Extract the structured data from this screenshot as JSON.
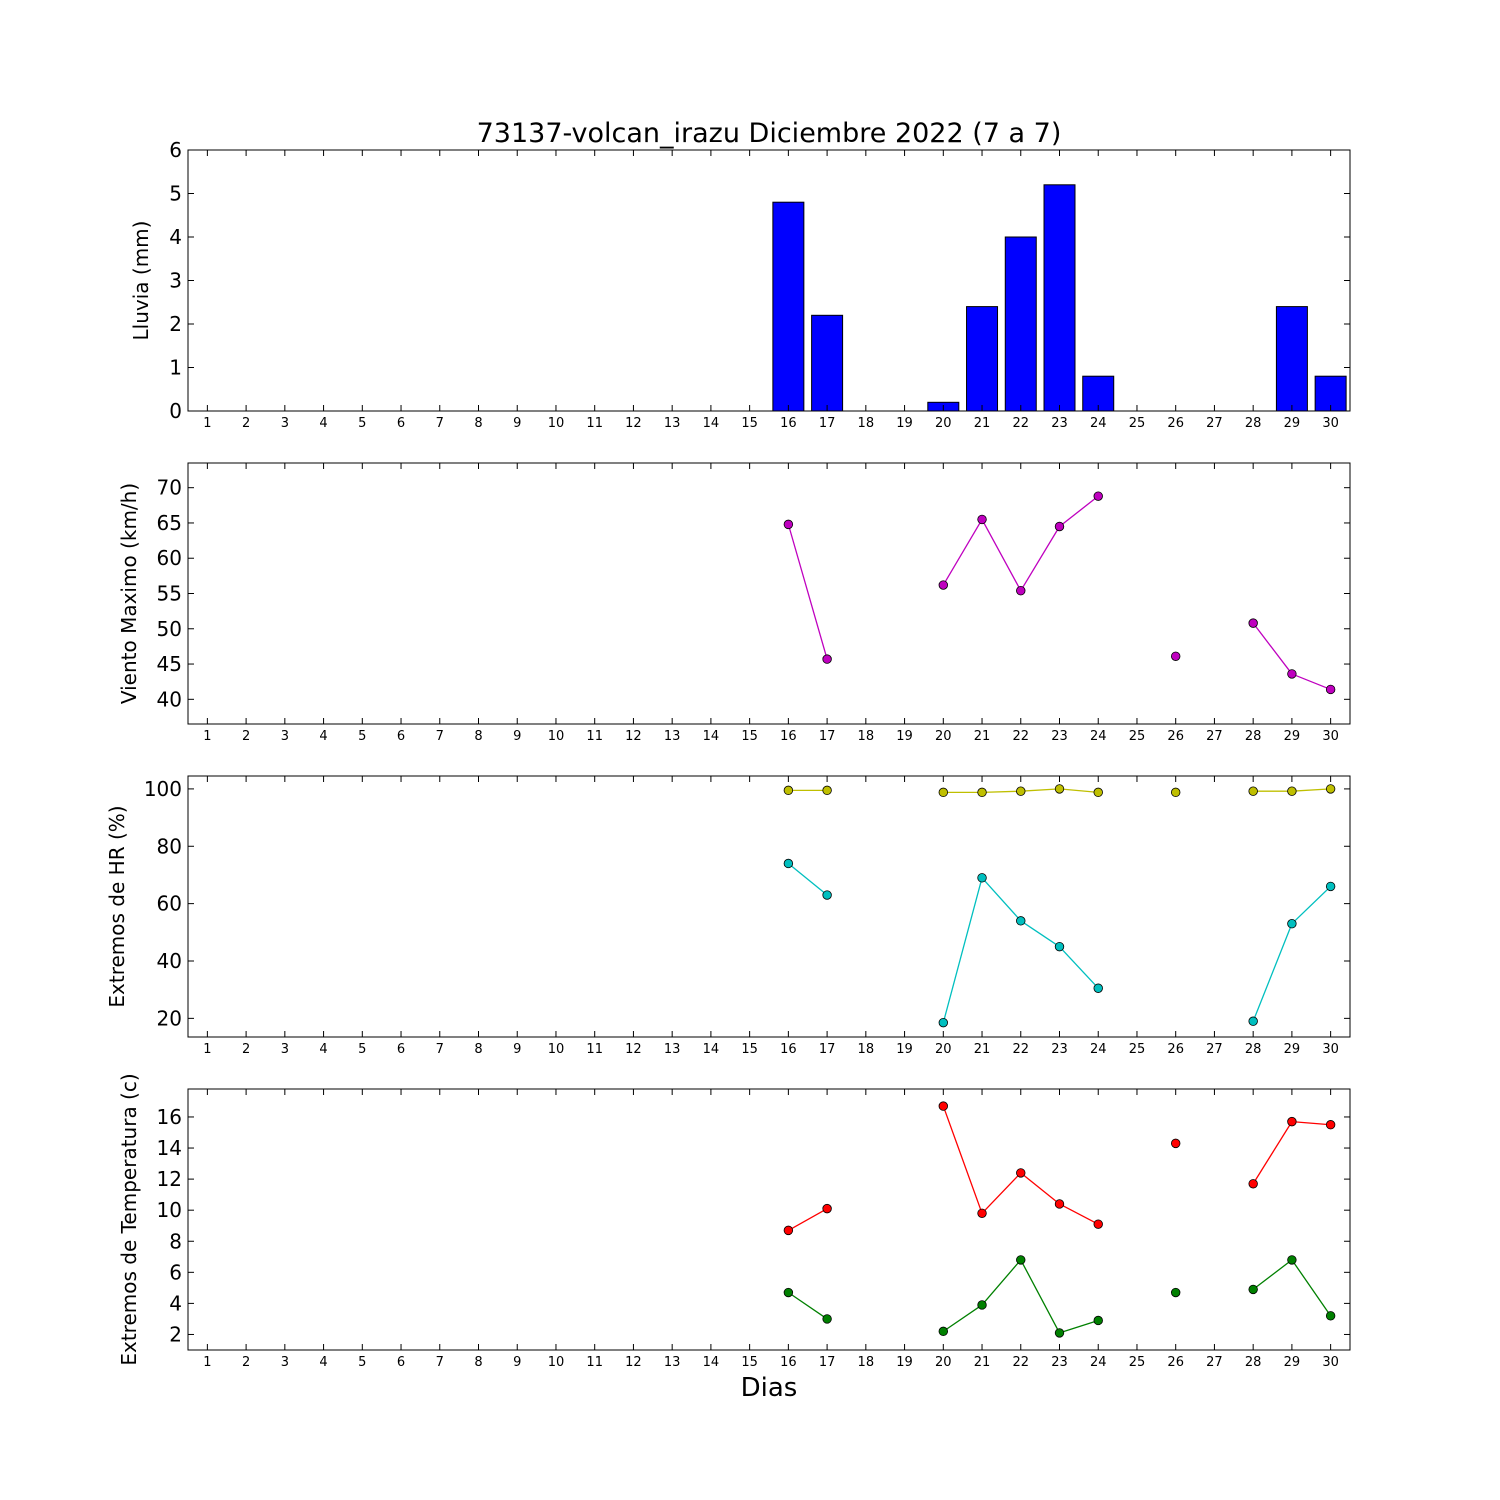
{
  "chart_data": {
    "title": "73137-volcan_irazu Diciembre 2022  (7 a 7)",
    "xlabel": "Dias",
    "x_ticks": [
      "1",
      "2",
      "3",
      "4",
      "5",
      "6",
      "7",
      "8",
      "9",
      "10",
      "11",
      "12",
      "13",
      "14",
      "15",
      "16",
      "17",
      "18",
      "19",
      "20",
      "21",
      "22",
      "23",
      "24",
      "25",
      "26",
      "27",
      "28",
      "29",
      "30"
    ],
    "panels": [
      {
        "type": "bar",
        "ylabel": "Lluvia (mm)",
        "ylim": [
          0,
          6
        ],
        "yticks": [
          0,
          1,
          2,
          3,
          4,
          5,
          6
        ],
        "categories": [
          "1",
          "2",
          "3",
          "4",
          "5",
          "6",
          "7",
          "8",
          "9",
          "10",
          "11",
          "12",
          "13",
          "14",
          "15",
          "16",
          "17",
          "18",
          "19",
          "20",
          "21",
          "22",
          "23",
          "24",
          "25",
          "26",
          "27",
          "28",
          "29",
          "30"
        ],
        "values": [
          0,
          0,
          0,
          0,
          0,
          0,
          0,
          0,
          0,
          0,
          0,
          0,
          0,
          0,
          0,
          4.8,
          2.2,
          0,
          0,
          0.2,
          2.4,
          4.0,
          5.2,
          0.8,
          0,
          0,
          0,
          0,
          2.4,
          0.8
        ],
        "color": "#0000ff"
      },
      {
        "type": "line",
        "ylabel": "Viento Maximo (km/h)",
        "ylim": [
          36.5,
          73.5
        ],
        "yticks": [
          40,
          45,
          50,
          55,
          60,
          65,
          70
        ],
        "series": [
          {
            "color": "#bf00bf",
            "x": [
              16,
              17,
              18,
              19,
              20,
              21,
              22,
              23,
              24,
              25,
              26,
              27,
              28,
              29,
              30
            ],
            "y": [
              64.8,
              45.7,
              null,
              null,
              56.2,
              65.5,
              55.4,
              64.5,
              68.8,
              null,
              46.1,
              null,
              50.8,
              43.6,
              41.4
            ]
          }
        ]
      },
      {
        "type": "line",
        "ylabel": "Extremos de HR (%)",
        "ylim": [
          13.5,
          104.5
        ],
        "yticks": [
          20,
          40,
          60,
          80,
          100
        ],
        "series": [
          {
            "color": "#bfbf00",
            "x": [
              16,
              17,
              18,
              19,
              20,
              21,
              22,
              23,
              24,
              25,
              26,
              27,
              28,
              29,
              30
            ],
            "y": [
              99.5,
              99.5,
              null,
              null,
              98.8,
              98.8,
              99.2,
              100,
              98.8,
              null,
              98.8,
              null,
              99.2,
              99.2,
              100
            ]
          },
          {
            "color": "#00bfbf",
            "x": [
              16,
              17,
              18,
              19,
              20,
              21,
              22,
              23,
              24,
              25,
              26,
              27,
              28,
              29,
              30
            ],
            "y": [
              74.0,
              63.0,
              null,
              null,
              18.5,
              69.0,
              54.0,
              45.0,
              30.5,
              null,
              null,
              null,
              19.0,
              53.0,
              66.0
            ]
          }
        ]
      },
      {
        "type": "line",
        "ylabel": "Extremos de Temperatura (c)",
        "ylim": [
          1,
          17.8
        ],
        "yticks": [
          2,
          4,
          6,
          8,
          10,
          12,
          14,
          16
        ],
        "series": [
          {
            "color": "#ff0000",
            "x": [
              16,
              17,
              18,
              19,
              20,
              21,
              22,
              23,
              24,
              25,
              26,
              27,
              28,
              29,
              30
            ],
            "y": [
              8.7,
              10.1,
              null,
              null,
              16.7,
              9.8,
              12.4,
              10.4,
              9.1,
              null,
              14.3,
              null,
              11.7,
              15.7,
              15.5
            ]
          },
          {
            "color": "#008000",
            "x": [
              16,
              17,
              18,
              19,
              20,
              21,
              22,
              23,
              24,
              25,
              26,
              27,
              28,
              29,
              30
            ],
            "y": [
              4.7,
              3.0,
              null,
              null,
              2.2,
              3.9,
              6.8,
              2.1,
              2.9,
              null,
              4.7,
              null,
              4.9,
              6.8,
              3.2
            ]
          }
        ]
      }
    ]
  }
}
